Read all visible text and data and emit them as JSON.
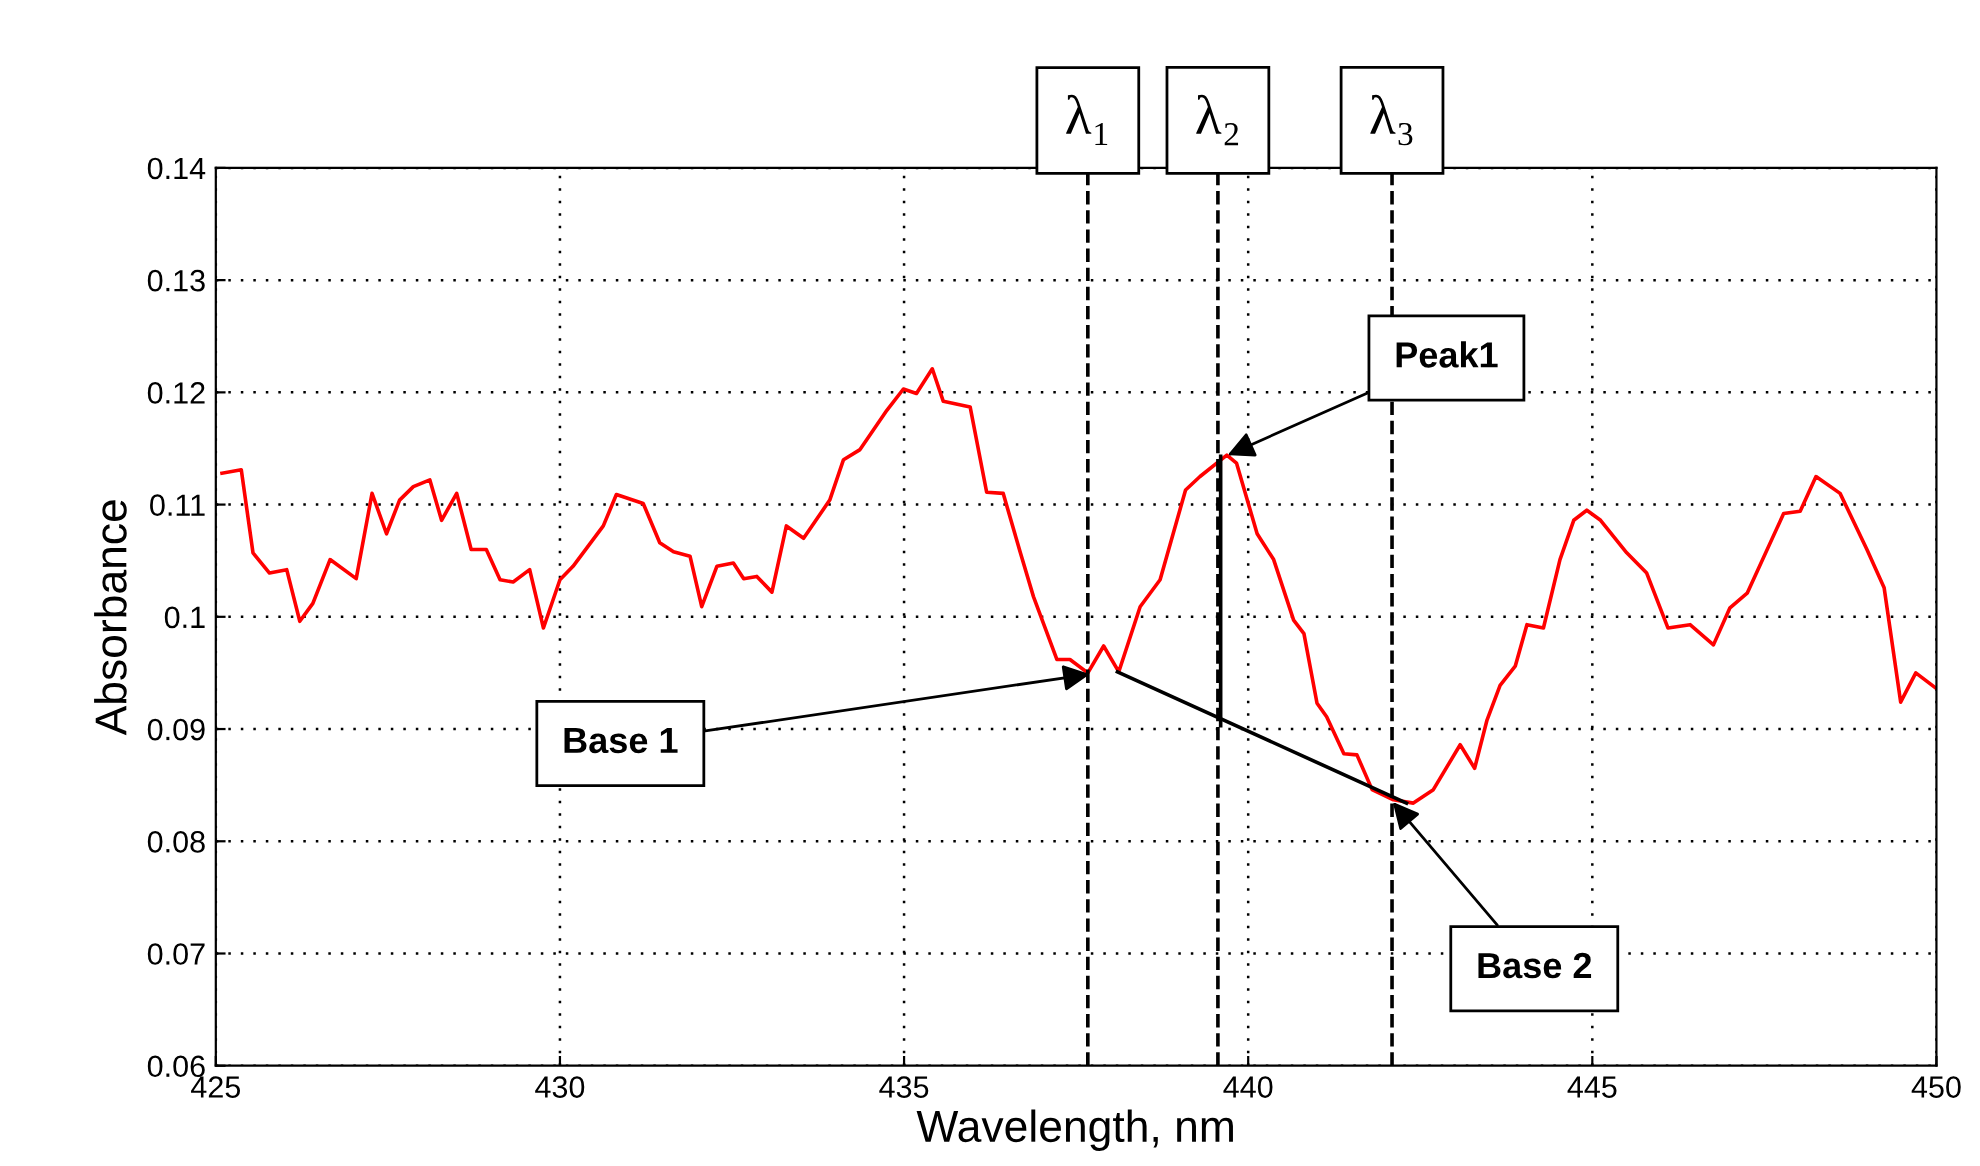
{
  "chart_data": {
    "type": "line",
    "xlabel": "Wavelength, nm",
    "ylabel": "Absorbance",
    "xlim": [
      425,
      450
    ],
    "xticks": [
      425,
      430,
      435,
      440,
      445,
      450
    ],
    "ylim": [
      0.06,
      0.14
    ],
    "yticks": [
      0.06,
      0.07,
      0.08,
      0.09,
      0.1,
      0.11,
      0.12,
      0.13,
      0.14
    ],
    "grid": true,
    "legend": false,
    "marker": "none",
    "series": [
      {
        "color": "#ff0000",
        "line_style": "solid",
        "x": [
          425.09,
          425.37,
          425.54,
          425.78,
          426.03,
          426.22,
          426.41,
          426.66,
          427.04,
          427.27,
          427.48,
          427.67,
          427.87,
          428.11,
          428.28,
          428.5,
          428.71,
          428.93,
          429.13,
          429.32,
          429.56,
          429.76,
          430.0,
          430.19,
          430.63,
          430.82,
          431.21,
          431.45,
          431.65,
          431.89,
          432.06,
          432.28,
          432.52,
          432.67,
          432.86,
          433.08,
          433.29,
          433.54,
          433.92,
          434.12,
          434.36,
          434.75,
          434.99,
          435.18,
          435.41,
          435.57,
          435.96,
          436.2,
          436.44,
          436.69,
          436.88,
          437.22,
          437.41,
          437.67,
          437.9,
          438.12,
          438.43,
          438.72,
          439.09,
          439.3,
          439.69,
          439.83,
          440.13,
          440.37,
          440.66,
          440.81,
          441.0,
          441.14,
          441.39,
          441.58,
          441.8,
          442.11,
          442.4,
          442.69,
          443.08,
          443.29,
          443.47,
          443.66,
          443.88,
          444.05,
          444.29,
          444.53,
          444.73,
          444.92,
          445.12,
          445.5,
          445.79,
          446.1,
          446.42,
          446.76,
          447.0,
          447.25,
          447.78,
          448.02,
          448.25,
          448.6,
          448.99,
          449.24,
          449.48,
          449.7,
          449.98
        ],
        "values": [
          0.1128,
          0.1131,
          0.1057,
          0.1039,
          0.1042,
          0.0996,
          0.1012,
          0.1051,
          0.1034,
          0.111,
          0.1074,
          0.1104,
          0.1116,
          0.1122,
          0.1086,
          0.111,
          0.106,
          0.106,
          0.1033,
          0.1031,
          0.1042,
          0.099,
          0.1033,
          0.1045,
          0.1081,
          0.1109,
          0.1101,
          0.1066,
          0.1058,
          0.1054,
          0.1009,
          0.1045,
          0.1048,
          0.1034,
          0.1036,
          0.1022,
          0.1081,
          0.107,
          0.1104,
          0.114,
          0.1149,
          0.1184,
          0.1203,
          0.1199,
          0.1221,
          0.1192,
          0.1187,
          0.1111,
          0.111,
          0.1057,
          0.1018,
          0.0962,
          0.0962,
          0.095,
          0.0974,
          0.0951,
          0.1009,
          0.1033,
          0.1113,
          0.1125,
          0.1144,
          0.1137,
          0.1074,
          0.1051,
          0.0997,
          0.0985,
          0.0923,
          0.0911,
          0.0878,
          0.0877,
          0.0846,
          0.0837,
          0.0834,
          0.0846,
          0.0886,
          0.0865,
          0.0908,
          0.0939,
          0.0956,
          0.0993,
          0.099,
          0.1051,
          0.1086,
          0.1095,
          0.1086,
          0.1057,
          0.1039,
          0.099,
          0.0993,
          0.0975,
          0.1008,
          0.1021,
          0.1092,
          0.1094,
          0.1125,
          0.111,
          0.106,
          0.1026,
          0.0924,
          0.095,
          0.0937
        ]
      },
      {
        "color": "#000000",
        "line_style": "solid",
        "x": [
          438.1,
          442.3
        ],
        "values": [
          0.0951,
          0.0834
        ]
      },
      {
        "color": "#000000",
        "line_style": "solid",
        "x": [
          439.6,
          439.6
        ],
        "values": [
          0.0903,
          0.1143
        ]
      }
    ],
    "ref_lines": [
      {
        "axis": "x",
        "value": 437.67,
        "label": "λ₁",
        "color": "#000000",
        "line_style": "dashed"
      },
      {
        "axis": "x",
        "value": 439.56,
        "label": "λ₂",
        "color": "#000000",
        "line_style": "dashed"
      },
      {
        "axis": "x",
        "value": 442.09,
        "label": "λ₃",
        "color": "#000000",
        "line_style": "dashed"
      }
    ],
    "annotations": [
      {
        "text": "Peak1",
        "x": 439.7,
        "y": 0.1144
      },
      {
        "text": "Base 1",
        "x": 437.7,
        "y": 0.0949
      },
      {
        "text": "Base 2",
        "x": 442.1,
        "y": 0.0835
      }
    ]
  }
}
